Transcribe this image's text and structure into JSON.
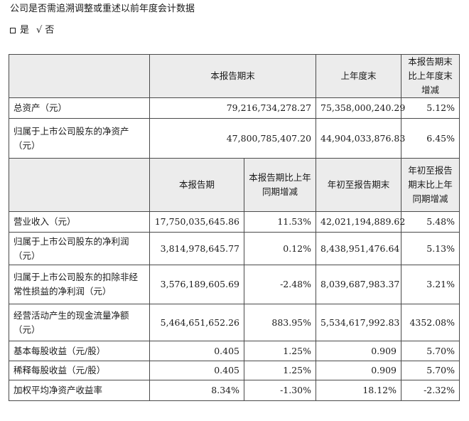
{
  "intro": {
    "question": "公司是否需追溯调整或重述以前年度会计数据",
    "option_yes": "是",
    "check_mark": "√",
    "option_no": "否"
  },
  "table1": {
    "headers": [
      "本报告期末",
      "上年度末",
      "本报告期末比上年度末增减"
    ],
    "rows": [
      {
        "label": "总资产（元）",
        "values": [
          "79,216,734,278.27",
          "75,358,000,240.29",
          "5.12%"
        ]
      },
      {
        "label": "归属于上市公司股东的净资产（元）",
        "values": [
          "47,800,785,407.20",
          "44,904,033,876.83",
          "6.45%"
        ]
      }
    ]
  },
  "table2": {
    "headers": [
      "本报告期",
      "本报告期比上年同期增减",
      "年初至报告期末",
      "年初至报告期末比上年同期增减"
    ],
    "rows": [
      {
        "label": "营业收入（元）",
        "values": [
          "17,750,035,645.86",
          "11.53%",
          "42,021,194,889.62",
          "5.48%"
        ]
      },
      {
        "label": "归属于上市公司股东的净利润（元）",
        "values": [
          "3,814,978,645.77",
          "0.12%",
          "8,438,951,476.64",
          "5.13%"
        ]
      },
      {
        "label": "归属于上市公司股东的扣除非经常性损益的净利润（元）",
        "values": [
          "3,576,189,605.69",
          "-2.48%",
          "8,039,687,983.37",
          "3.21%"
        ]
      },
      {
        "label": "经营活动产生的现金流量净额（元）",
        "values": [
          "5,464,651,652.26",
          "883.95%",
          "5,534,617,992.83",
          "4352.08%"
        ]
      },
      {
        "label": "基本每股收益（元/股）",
        "values": [
          "0.405",
          "1.25%",
          "0.909",
          "5.70%"
        ]
      },
      {
        "label": "稀释每股收益（元/股）",
        "values": [
          "0.405",
          "1.25%",
          "0.909",
          "5.70%"
        ]
      },
      {
        "label": "加权平均净资产收益率",
        "values": [
          "8.34%",
          "-1.30%",
          "18.12%",
          "-2.32%"
        ]
      }
    ]
  }
}
